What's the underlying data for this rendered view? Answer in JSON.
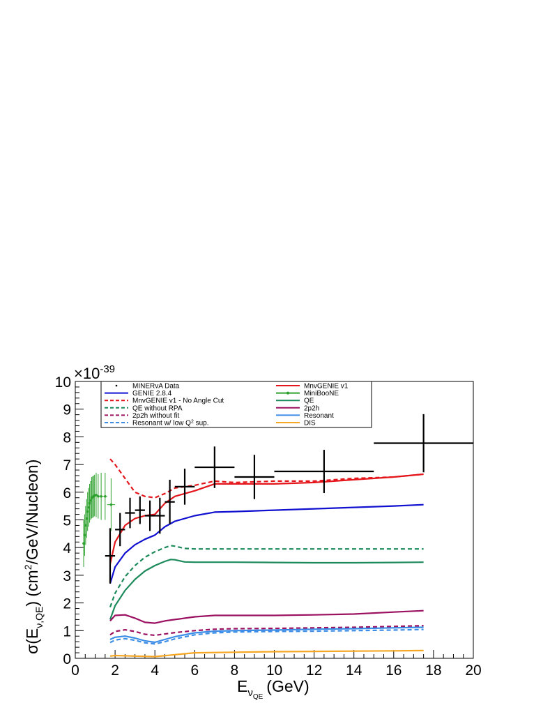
{
  "chart_data": {
    "type": "line",
    "xlabel_main": "E",
    "xlabel_sub": "ν",
    "xlabel_subsub": "QE",
    "xlabel_unit": "(GeV)",
    "ylabel_pre": "σ(E",
    "ylabel_sub": "ν,QE",
    "ylabel_post": ") (cm",
    "ylabel_sup": "2",
    "ylabel_end": "/GeV/Nucleon)",
    "y_exponent_prefix": "×10",
    "y_exponent": "-39",
    "xlim": [
      0,
      20
    ],
    "ylim": [
      0,
      10
    ],
    "x_ticks": [
      "0",
      "2",
      "4",
      "6",
      "8",
      "10",
      "12",
      "14",
      "16",
      "18",
      "20"
    ],
    "y_ticks": [
      "0",
      "1",
      "2",
      "3",
      "4",
      "5",
      "6",
      "7",
      "8",
      "9",
      "10"
    ],
    "legend_position": "top",
    "data_series": [
      {
        "name": "MINERvA Data",
        "color": "#000000",
        "points": [
          {
            "x": 1.75,
            "y": 3.7,
            "xerr": 0.25,
            "yerr": 1.0
          },
          {
            "x": 2.25,
            "y": 4.65,
            "xerr": 0.25,
            "yerr": 0.6
          },
          {
            "x": 2.75,
            "y": 5.25,
            "xerr": 0.25,
            "yerr": 0.55
          },
          {
            "x": 3.25,
            "y": 5.35,
            "xerr": 0.25,
            "yerr": 0.5
          },
          {
            "x": 3.75,
            "y": 5.15,
            "xerr": 0.25,
            "yerr": 0.55
          },
          {
            "x": 4.25,
            "y": 5.15,
            "xerr": 0.25,
            "yerr": 0.65
          },
          {
            "x": 4.75,
            "y": 5.65,
            "xerr": 0.25,
            "yerr": 0.8
          },
          {
            "x": 5.5,
            "y": 6.2,
            "xerr": 0.5,
            "yerr": 0.65
          },
          {
            "x": 7.0,
            "y": 6.9,
            "xerr": 1.0,
            "yerr": 0.75
          },
          {
            "x": 9.0,
            "y": 6.55,
            "xerr": 1.0,
            "yerr": 0.8
          },
          {
            "x": 12.5,
            "y": 6.75,
            "xerr": 2.5,
            "yerr": 0.78
          },
          {
            "x": 17.5,
            "y": 7.77,
            "xerr": 2.5,
            "yerr": 1.05
          }
        ]
      },
      {
        "name": "MiniBooNE",
        "color": "#2ca02c",
        "points": [
          {
            "x": 0.42,
            "y": 4.15,
            "xerr": 0.025,
            "yerr": 0.85
          },
          {
            "x": 0.47,
            "y": 4.45,
            "xerr": 0.025,
            "yerr": 0.75
          },
          {
            "x": 0.52,
            "y": 4.8,
            "xerr": 0.025,
            "yerr": 0.7
          },
          {
            "x": 0.57,
            "y": 5.05,
            "xerr": 0.025,
            "yerr": 0.7
          },
          {
            "x": 0.62,
            "y": 5.3,
            "xerr": 0.025,
            "yerr": 0.7
          },
          {
            "x": 0.67,
            "y": 5.45,
            "xerr": 0.025,
            "yerr": 0.7
          },
          {
            "x": 0.72,
            "y": 5.6,
            "xerr": 0.025,
            "yerr": 0.7
          },
          {
            "x": 0.77,
            "y": 5.7,
            "xerr": 0.025,
            "yerr": 0.7
          },
          {
            "x": 0.82,
            "y": 5.8,
            "xerr": 0.025,
            "yerr": 0.75
          },
          {
            "x": 0.87,
            "y": 5.82,
            "xerr": 0.025,
            "yerr": 0.75
          },
          {
            "x": 0.92,
            "y": 5.85,
            "xerr": 0.025,
            "yerr": 0.75
          },
          {
            "x": 0.97,
            "y": 5.88,
            "xerr": 0.025,
            "yerr": 0.75
          },
          {
            "x": 1.05,
            "y": 5.9,
            "xerr": 0.05,
            "yerr": 0.8
          },
          {
            "x": 1.15,
            "y": 5.85,
            "xerr": 0.05,
            "yerr": 0.8
          },
          {
            "x": 1.3,
            "y": 5.85,
            "xerr": 0.1,
            "yerr": 0.85
          },
          {
            "x": 1.5,
            "y": 5.85,
            "xerr": 0.1,
            "yerr": 0.85
          },
          {
            "x": 1.8,
            "y": 5.55,
            "xerr": 0.2,
            "yerr": 0.95
          }
        ]
      }
    ],
    "series": [
      {
        "name": "MnvGENIE v1",
        "color": "#e4161b",
        "dash": "solid",
        "x": [
          1.75,
          2.0,
          2.5,
          3.0,
          3.5,
          4.0,
          4.5,
          5.0,
          6.0,
          7.0,
          8.0,
          10.0,
          12.0,
          14.0,
          16.0,
          17.5
        ],
        "y": [
          3.4,
          4.2,
          4.8,
          5.05,
          5.15,
          5.2,
          5.6,
          5.85,
          6.05,
          6.3,
          6.3,
          6.3,
          6.35,
          6.45,
          6.55,
          6.65
        ]
      },
      {
        "name": "GENIE 2.8.4",
        "color": "#1010d0",
        "dash": "solid",
        "x": [
          1.75,
          2.0,
          2.5,
          3.0,
          3.5,
          4.0,
          4.5,
          5.0,
          6.0,
          7.0,
          8.0,
          10.0,
          12.0,
          14.0,
          16.0,
          17.5
        ],
        "y": [
          2.7,
          3.3,
          3.8,
          4.1,
          4.3,
          4.45,
          4.75,
          4.95,
          5.15,
          5.28,
          5.3,
          5.35,
          5.4,
          5.45,
          5.5,
          5.55
        ]
      },
      {
        "name": "MnvGENIE v1 - No Angle Cut",
        "color": "#e4161b",
        "dash": "dashed",
        "x": [
          1.75,
          2.0,
          2.5,
          3.0,
          3.5,
          4.0,
          4.5,
          5.0,
          6.0,
          7.0,
          8.0,
          10.0,
          12.0,
          14.0,
          16.0,
          17.5
        ],
        "y": [
          7.2,
          7.0,
          6.5,
          6.0,
          5.85,
          5.8,
          5.95,
          6.15,
          6.25,
          6.4,
          6.35,
          6.4,
          6.4,
          6.5,
          6.55,
          6.65
        ]
      },
      {
        "name": "QE",
        "color": "#1c8a5a",
        "dash": "solid",
        "x": [
          1.75,
          2.0,
          2.5,
          3.0,
          3.5,
          4.0,
          4.5,
          4.8,
          5.0,
          5.5,
          6.0,
          8.0,
          10.0,
          12.0,
          14.0,
          16.0,
          17.5
        ],
        "y": [
          1.4,
          1.9,
          2.45,
          2.85,
          3.15,
          3.35,
          3.5,
          3.57,
          3.56,
          3.48,
          3.47,
          3.47,
          3.46,
          3.45,
          3.45,
          3.46,
          3.47
        ]
      },
      {
        "name": "QE without RPA",
        "color": "#1c8a5a",
        "dash": "dashed",
        "x": [
          1.75,
          2.0,
          2.5,
          3.0,
          3.5,
          4.0,
          4.5,
          4.8,
          5.0,
          5.5,
          6.0,
          8.0,
          10.0,
          12.0,
          14.0,
          16.0,
          17.5
        ],
        "y": [
          1.85,
          2.35,
          2.95,
          3.35,
          3.65,
          3.85,
          4.0,
          4.07,
          4.05,
          3.97,
          3.95,
          3.95,
          3.95,
          3.95,
          3.95,
          3.95,
          3.95
        ]
      },
      {
        "name": "2p2h",
        "color": "#9b1060",
        "dash": "solid",
        "x": [
          1.75,
          2.0,
          2.5,
          3.0,
          3.5,
          4.0,
          4.5,
          5.0,
          6.0,
          7.0,
          8.0,
          10.0,
          12.0,
          14.0,
          16.0,
          17.5
        ],
        "y": [
          1.35,
          1.55,
          1.57,
          1.45,
          1.3,
          1.27,
          1.35,
          1.4,
          1.5,
          1.55,
          1.55,
          1.55,
          1.57,
          1.6,
          1.67,
          1.72
        ]
      },
      {
        "name": "2p2h without fit",
        "color": "#9b1060",
        "dash": "dashed",
        "x": [
          1.75,
          2.0,
          2.5,
          3.0,
          3.5,
          4.0,
          4.5,
          5.0,
          6.0,
          7.0,
          8.0,
          10.0,
          12.0,
          14.0,
          16.0,
          17.5
        ],
        "y": [
          0.85,
          0.97,
          1.03,
          0.97,
          0.87,
          0.83,
          0.88,
          0.93,
          1.0,
          1.05,
          1.07,
          1.08,
          1.1,
          1.12,
          1.15,
          1.18
        ]
      },
      {
        "name": "Resonant",
        "color": "#3a8ce6",
        "dash": "solid",
        "x": [
          1.75,
          2.0,
          2.5,
          3.0,
          3.5,
          4.0,
          4.5,
          5.0,
          6.0,
          7.0,
          8.0,
          10.0,
          12.0,
          14.0,
          16.0,
          17.5
        ],
        "y": [
          0.68,
          0.76,
          0.8,
          0.73,
          0.63,
          0.58,
          0.68,
          0.78,
          0.92,
          0.98,
          1.0,
          1.02,
          1.05,
          1.07,
          1.1,
          1.12
        ]
      },
      {
        "name": "Resonant w/ low Q² sup.",
        "color": "#3a8ce6",
        "dash": "dashed",
        "x": [
          1.75,
          2.0,
          2.5,
          3.0,
          3.5,
          4.0,
          4.5,
          5.0,
          6.0,
          7.0,
          8.0,
          10.0,
          12.0,
          14.0,
          16.0,
          17.5
        ],
        "y": [
          0.57,
          0.66,
          0.71,
          0.65,
          0.56,
          0.52,
          0.6,
          0.7,
          0.85,
          0.92,
          0.95,
          0.97,
          0.98,
          1.0,
          1.02,
          1.04
        ]
      },
      {
        "name": "DIS",
        "color": "#f5a623",
        "dash": "solid",
        "x": [
          1.75,
          2.0,
          3.0,
          4.0,
          5.0,
          6.0,
          8.0,
          10.0,
          12.0,
          14.0,
          16.0,
          17.5
        ],
        "y": [
          0.08,
          0.1,
          0.08,
          0.06,
          0.13,
          0.2,
          0.22,
          0.24,
          0.25,
          0.26,
          0.27,
          0.28
        ]
      }
    ],
    "legend_left": [
      {
        "label": "MINERvA Data",
        "ref": "MINERvA Data",
        "style": "marker"
      },
      {
        "label": "GENIE 2.8.4",
        "ref": "GENIE 2.8.4",
        "style": "line"
      },
      {
        "label": "MnvGENIE v1 - No Angle Cut",
        "ref": "MnvGENIE v1 - No Angle Cut",
        "style": "line"
      },
      {
        "label": "QE without RPA",
        "ref": "QE without RPA",
        "style": "line"
      },
      {
        "label": "2p2h without fit",
        "ref": "2p2h without fit",
        "style": "line"
      },
      {
        "label": "Resonant w/ low Q",
        "sup": "2",
        "label_end": " sup.",
        "ref": "Resonant w/ low Q² sup.",
        "style": "line"
      }
    ],
    "legend_right": [
      {
        "label": "MnvGENIE v1",
        "ref": "MnvGENIE v1",
        "style": "line"
      },
      {
        "label": "MiniBooNE",
        "ref": "MiniBooNE",
        "style": "marker-line"
      },
      {
        "label": "QE",
        "ref": "QE",
        "style": "line"
      },
      {
        "label": "2p2h",
        "ref": "2p2h",
        "style": "line"
      },
      {
        "label": "Resonant",
        "ref": "Resonant",
        "style": "line"
      },
      {
        "label": "DIS",
        "ref": "DIS",
        "style": "line"
      }
    ]
  }
}
